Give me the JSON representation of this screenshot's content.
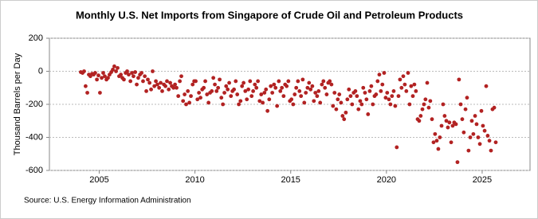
{
  "chart_data": {
    "type": "scatter",
    "title": "Monthly U.S. Net Imports from Singapore of Crude Oil and Petroleum Products",
    "y_label": "Thousand Barrels per Day",
    "source": "Source: U.S. Energy Information Administration",
    "color": "#b22222",
    "xlim": [
      2002.4,
      2027.5
    ],
    "xticks": [
      2005,
      2010,
      2015,
      2020,
      2025
    ],
    "ylim": [
      -600,
      200
    ],
    "yticks": [
      200,
      0,
      -200,
      -400,
      -600
    ],
    "grid": true,
    "x": [
      2004.04,
      2004.13,
      2004.21,
      2004.29,
      2004.38,
      2004.46,
      2004.54,
      2004.63,
      2004.71,
      2004.79,
      2004.88,
      2004.96,
      2005.04,
      2005.13,
      2005.21,
      2005.29,
      2005.38,
      2005.46,
      2005.54,
      2005.63,
      2005.71,
      2005.79,
      2005.88,
      2005.96,
      2006.04,
      2006.13,
      2006.21,
      2006.29,
      2006.38,
      2006.46,
      2006.54,
      2006.63,
      2006.71,
      2006.79,
      2006.88,
      2006.96,
      2007.04,
      2007.13,
      2007.21,
      2007.29,
      2007.38,
      2007.46,
      2007.54,
      2007.63,
      2007.71,
      2007.79,
      2007.88,
      2007.96,
      2008.04,
      2008.13,
      2008.21,
      2008.29,
      2008.38,
      2008.46,
      2008.54,
      2008.63,
      2008.71,
      2008.79,
      2008.88,
      2008.96,
      2009.04,
      2009.13,
      2009.21,
      2009.29,
      2009.38,
      2009.46,
      2009.54,
      2009.63,
      2009.71,
      2009.79,
      2009.88,
      2009.96,
      2010.04,
      2010.13,
      2010.21,
      2010.29,
      2010.38,
      2010.46,
      2010.54,
      2010.63,
      2010.71,
      2010.79,
      2010.88,
      2010.96,
      2011.04,
      2011.13,
      2011.21,
      2011.29,
      2011.38,
      2011.46,
      2011.54,
      2011.63,
      2011.71,
      2011.79,
      2011.88,
      2011.96,
      2012.04,
      2012.13,
      2012.21,
      2012.29,
      2012.38,
      2012.46,
      2012.54,
      2012.63,
      2012.71,
      2012.79,
      2012.88,
      2012.96,
      2013.04,
      2013.13,
      2013.21,
      2013.29,
      2013.38,
      2013.46,
      2013.54,
      2013.63,
      2013.71,
      2013.79,
      2013.88,
      2013.96,
      2014.04,
      2014.13,
      2014.21,
      2014.29,
      2014.38,
      2014.46,
      2014.54,
      2014.63,
      2014.71,
      2014.79,
      2014.88,
      2014.96,
      2015.04,
      2015.13,
      2015.21,
      2015.29,
      2015.38,
      2015.46,
      2015.54,
      2015.63,
      2015.71,
      2015.79,
      2015.88,
      2015.96,
      2016.04,
      2016.13,
      2016.21,
      2016.29,
      2016.38,
      2016.46,
      2016.54,
      2016.63,
      2016.71,
      2016.79,
      2016.88,
      2016.96,
      2017.04,
      2017.13,
      2017.21,
      2017.29,
      2017.38,
      2017.46,
      2017.54,
      2017.63,
      2017.71,
      2017.79,
      2017.88,
      2017.96,
      2018.04,
      2018.13,
      2018.21,
      2018.29,
      2018.38,
      2018.46,
      2018.54,
      2018.63,
      2018.71,
      2018.79,
      2018.88,
      2018.96,
      2019.04,
      2019.13,
      2019.21,
      2019.29,
      2019.38,
      2019.46,
      2019.54,
      2019.63,
      2019.71,
      2019.79,
      2019.88,
      2019.96,
      2020.04,
      2020.13,
      2020.21,
      2020.29,
      2020.38,
      2020.46,
      2020.54,
      2020.63,
      2020.71,
      2020.79,
      2020.88,
      2020.96,
      2021.04,
      2021.13,
      2021.21,
      2021.29,
      2021.38,
      2021.46,
      2021.54,
      2021.63,
      2021.71,
      2021.79,
      2021.88,
      2021.96,
      2022.04,
      2022.13,
      2022.21,
      2022.29,
      2022.38,
      2022.46,
      2022.54,
      2022.63,
      2022.71,
      2022.79,
      2022.88,
      2022.96,
      2023.04,
      2023.13,
      2023.21,
      2023.29,
      2023.38,
      2023.46,
      2023.54,
      2023.63,
      2023.71,
      2023.79,
      2023.88,
      2023.96,
      2024.04,
      2024.13,
      2024.21,
      2024.29,
      2024.38,
      2024.46,
      2024.54,
      2024.63,
      2024.71,
      2024.79,
      2024.88,
      2024.96,
      2025.04,
      2025.13,
      2025.21,
      2025.29,
      2025.38,
      2025.46,
      2025.54,
      2025.63,
      2025.71
    ],
    "values": [
      -5,
      -10,
      0,
      -90,
      -130,
      -20,
      -30,
      -15,
      -20,
      -10,
      -50,
      -25,
      -130,
      -40,
      -10,
      -30,
      -50,
      -40,
      -20,
      -5,
      10,
      30,
      0,
      20,
      -30,
      -20,
      -40,
      -50,
      -10,
      0,
      -20,
      -60,
      -10,
      -30,
      -5,
      -80,
      -40,
      -20,
      -10,
      -60,
      -30,
      -120,
      -50,
      -70,
      -110,
      0,
      -90,
      -60,
      -80,
      -100,
      -70,
      -120,
      -80,
      -90,
      -60,
      -110,
      -70,
      -90,
      -100,
      -80,
      -100,
      -150,
      -60,
      -30,
      -180,
      -140,
      -200,
      -120,
      -190,
      -150,
      -80,
      -60,
      -60,
      -170,
      -130,
      -160,
      -110,
      -100,
      -60,
      -140,
      -190,
      -130,
      -120,
      -40,
      -80,
      -120,
      -100,
      -50,
      -160,
      -200,
      -130,
      -90,
      -110,
      -70,
      -150,
      -120,
      -110,
      -60,
      -140,
      -200,
      -180,
      -90,
      -70,
      -120,
      -170,
      -110,
      -60,
      -150,
      -120,
      -80,
      -100,
      -60,
      -180,
      -140,
      -190,
      -130,
      -110,
      -240,
      -170,
      -90,
      -130,
      -80,
      -100,
      -210,
      -60,
      -120,
      -100,
      -150,
      -80,
      -90,
      -60,
      -180,
      -170,
      -200,
      -140,
      -100,
      -60,
      -120,
      -150,
      -50,
      -190,
      -130,
      -100,
      -70,
      -110,
      -90,
      -180,
      -130,
      -150,
      -120,
      -190,
      -80,
      -60,
      -100,
      -140,
      -70,
      -60,
      -80,
      -210,
      -130,
      -230,
      -170,
      -140,
      -190,
      -270,
      -290,
      -250,
      -170,
      -110,
      -150,
      -200,
      -130,
      -120,
      -150,
      -230,
      -180,
      -200,
      -100,
      -130,
      -170,
      -260,
      -120,
      -90,
      -200,
      -150,
      -140,
      -60,
      -20,
      -120,
      -80,
      -10,
      -160,
      -130,
      -170,
      -200,
      -150,
      -120,
      -210,
      -460,
      -150,
      -50,
      -100,
      -30,
      -80,
      -120,
      -10,
      -200,
      -90,
      -150,
      -80,
      -120,
      -290,
      -300,
      -270,
      -230,
      -200,
      -170,
      -70,
      -220,
      -180,
      -290,
      -430,
      -380,
      -420,
      -470,
      -400,
      -330,
      -200,
      -270,
      -300,
      -340,
      -310,
      -430,
      -330,
      -310,
      -320,
      -550,
      -50,
      -200,
      -290,
      -370,
      -230,
      -160,
      -480,
      -400,
      -300,
      -380,
      -270,
      -320,
      -400,
      -440,
      -240,
      -330,
      -360,
      -90,
      -390,
      -420,
      -480,
      -230,
      -220,
      -430
    ]
  }
}
